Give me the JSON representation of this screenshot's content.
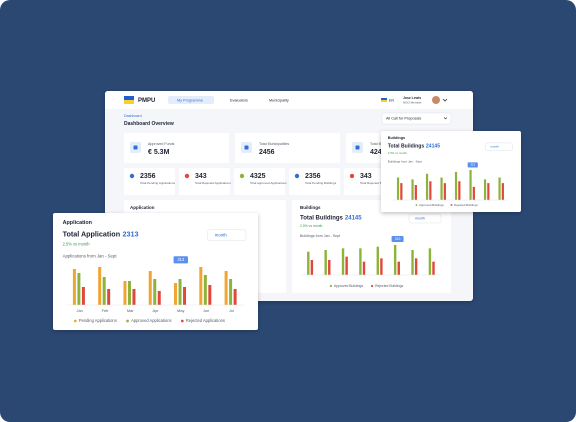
{
  "nav": {
    "brand": "PMPU",
    "items": [
      "My Programme",
      "Evaluators",
      "Municipality"
    ],
    "language": "EN",
    "user_name": "Jose Lewis",
    "user_role": "NGO Member"
  },
  "breadcrumb": "Dashboard",
  "page_title": "Dashboard Overview",
  "filter": "All Call for Proposals",
  "kpis": [
    {
      "label": "Approved Funds",
      "value": "€ 5.3M"
    },
    {
      "label": "Total Municipalities",
      "value": 2456
    },
    {
      "label": "Total Buildings",
      "value": 424
    }
  ],
  "stats": [
    {
      "value": 2356,
      "label": "Total Pending Applications"
    },
    {
      "value": 343,
      "label": "Total Rejected Applications"
    },
    {
      "value": 4325,
      "label": "Total approved Applications"
    },
    {
      "value": 2356,
      "label": "Total Pending Buildings"
    },
    {
      "value": 343,
      "label": "Total Rejected Buildings"
    }
  ],
  "application_panel": {
    "title": "Application"
  },
  "buildings_panel": {
    "title": "Buildings",
    "total_label": "Total Buildings",
    "total": 24145,
    "change": "2.5% vs month",
    "dropdown": "month",
    "subtitle": "Buildings from Jan - Sept",
    "tooltip": "313",
    "chart": {
      "series": [
        {
          "name": "Approved Buildings",
          "color": "#8db33a",
          "values": [
            70,
            75,
            80,
            80,
            85,
            90,
            75,
            80
          ]
        },
        {
          "name": "Rejected Buildings",
          "color": "#e0483a",
          "values": [
            45,
            45,
            55,
            40,
            50,
            40,
            50,
            40
          ]
        }
      ]
    }
  },
  "buildings_card": {
    "title": "Buildings",
    "total_label": "Total Buildings",
    "total": 24145,
    "change": "2.5% vs month",
    "dropdown": "month",
    "subtitle": "Buildings from Jan - Sept",
    "tooltip": "313",
    "chart": {
      "series": [
        {
          "name": "Approved Buildings",
          "color": "#8db33a",
          "values": [
            60,
            55,
            70,
            60,
            75,
            80,
            55,
            60
          ]
        },
        {
          "name": "Rejected Buildings",
          "color": "#e0483a",
          "values": [
            45,
            40,
            50,
            45,
            50,
            35,
            45,
            45
          ]
        }
      ]
    }
  },
  "application_card": {
    "title": "Application",
    "total_label": "Total Application",
    "total": 2313,
    "change": "2.5% vs month",
    "dropdown": "month",
    "subtitle": "Applications from Jan - Sept",
    "tooltip": "313",
    "chart": {
      "categories": [
        "Jan",
        "Feb",
        "Mar",
        "Apr",
        "May",
        "Jun",
        "Jul"
      ],
      "series": [
        {
          "name": "Pending Applications",
          "color": "#f0a530",
          "values": [
            90,
            95,
            60,
            85,
            55,
            95,
            85
          ]
        },
        {
          "name": "Approved Applications",
          "color": "#8db33a",
          "values": [
            80,
            70,
            60,
            65,
            65,
            75,
            65
          ]
        },
        {
          "name": "Rejected Applications",
          "color": "#e0483a",
          "values": [
            45,
            40,
            40,
            35,
            45,
            50,
            40
          ]
        }
      ]
    }
  }
}
